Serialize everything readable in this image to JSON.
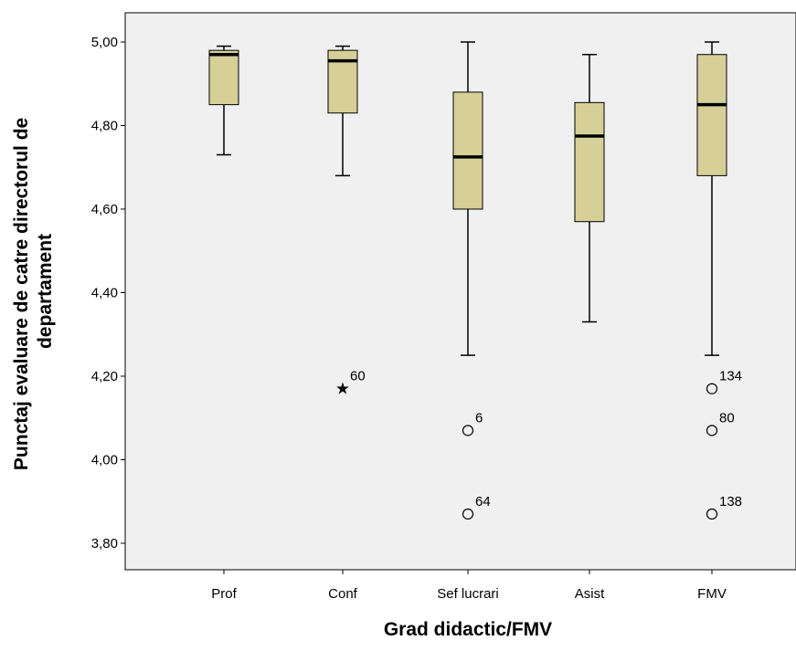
{
  "chart_data": {
    "type": "boxplot",
    "xlabel": "Grad didactic/FMV",
    "ylabel": [
      "Punctaj evaluare de catre directorul de",
      "departament"
    ],
    "ylim": [
      3.73,
      5.07
    ],
    "yticks": [
      "3,80",
      "4,00",
      "4,20",
      "4,40",
      "4,60",
      "4,80",
      "5,00"
    ],
    "ytick_values": [
      3.8,
      4.0,
      4.2,
      4.4,
      4.6,
      4.8,
      5.0
    ],
    "grid": false,
    "categories": [
      "Prof",
      "Conf",
      "Sef lucrari",
      "Asist",
      "FMV"
    ],
    "boxes": [
      {
        "category": "Prof",
        "whisker_low": 4.73,
        "q1": 4.85,
        "median": 4.97,
        "q3": 4.98,
        "whisker_high": 4.99,
        "outliers": []
      },
      {
        "category": "Conf",
        "whisker_low": 4.68,
        "q1": 4.83,
        "median": 4.955,
        "q3": 4.98,
        "whisker_high": 4.99,
        "outliers": [
          {
            "value": 4.17,
            "label": "60",
            "marker": "star"
          }
        ]
      },
      {
        "category": "Sef lucrari",
        "whisker_low": 4.25,
        "q1": 4.6,
        "median": 4.725,
        "q3": 4.88,
        "whisker_high": 5.0,
        "outliers": [
          {
            "value": 4.07,
            "label": "6",
            "marker": "circle"
          },
          {
            "value": 3.87,
            "label": "64",
            "marker": "circle"
          }
        ]
      },
      {
        "category": "Asist",
        "whisker_low": 4.33,
        "q1": 4.57,
        "median": 4.775,
        "q3": 4.855,
        "whisker_high": 4.97,
        "outliers": []
      },
      {
        "category": "FMV",
        "whisker_low": 4.25,
        "q1": 4.68,
        "median": 4.85,
        "q3": 4.97,
        "whisker_high": 5.0,
        "outliers": [
          {
            "value": 4.17,
            "label": "134",
            "marker": "circle"
          },
          {
            "value": 4.07,
            "label": "80",
            "marker": "circle"
          },
          {
            "value": 3.87,
            "label": "138",
            "marker": "circle"
          }
        ]
      }
    ],
    "colors": {
      "box_fill": "#d6cf98",
      "plot_background": "#f0f0f0",
      "stroke": "#000000"
    }
  }
}
